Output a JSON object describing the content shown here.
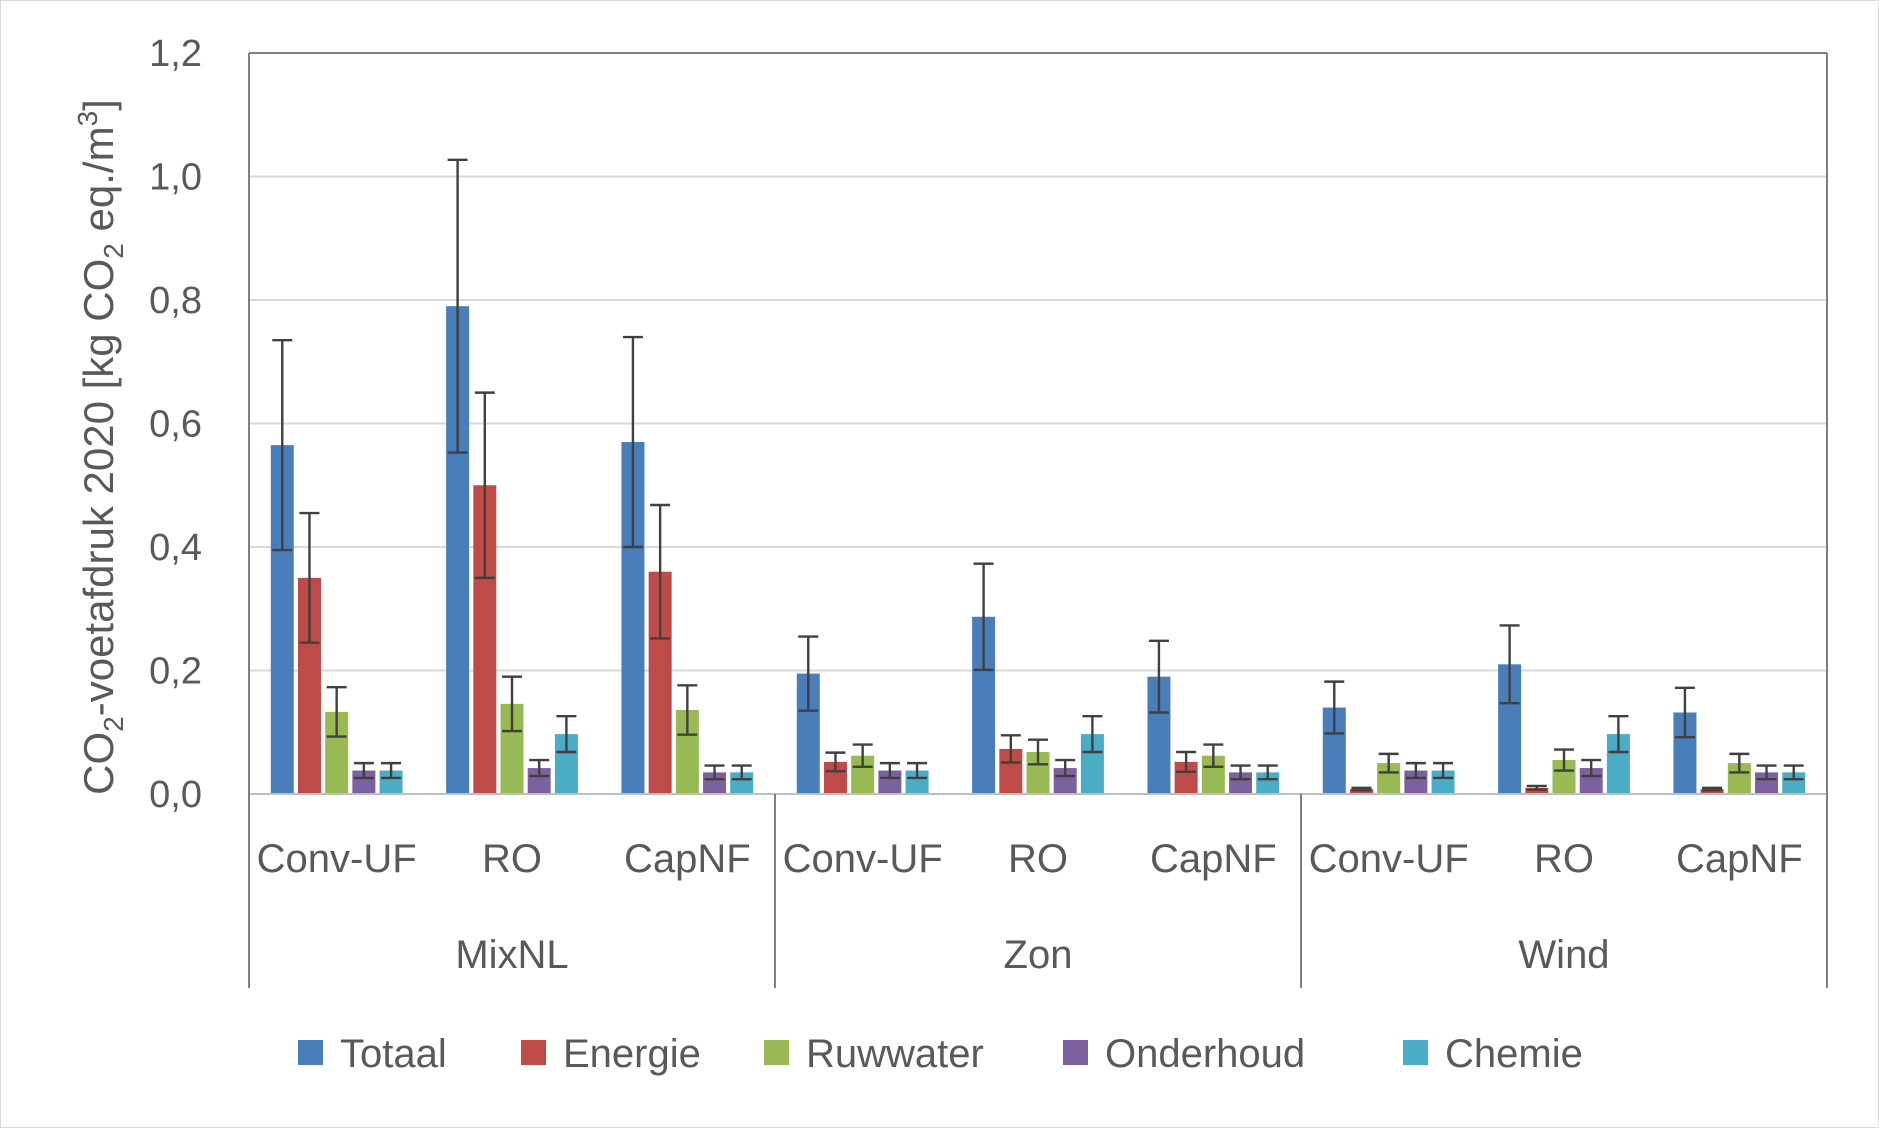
{
  "chart_data": {
    "type": "bar",
    "ylabel": {
      "prefix": "CO",
      "sub1": "2",
      "mid": "-voetafdruk 2020 [kg CO",
      "sub2": "2",
      "mid2": " eq./m",
      "sup": "3",
      "suffix": "]"
    },
    "ylim": [
      0,
      1.2
    ],
    "yticks": [
      "0,0",
      "0,2",
      "0,4",
      "0,6",
      "0,8",
      "1,0",
      "1,2"
    ],
    "ytick_values": [
      0,
      0.2,
      0.4,
      0.6,
      0.8,
      1.0,
      1.2
    ],
    "grid": true,
    "legend_position": "bottom",
    "groups": [
      "MixNL",
      "Zon",
      "Wind"
    ],
    "subcategories": [
      "Conv-UF",
      "RO",
      "CapNF"
    ],
    "series": [
      {
        "name": "Totaal",
        "color": "#4a7ebb",
        "values": [
          0.565,
          0.79,
          0.57,
          0.195,
          0.287,
          0.19,
          0.14,
          0.21,
          0.132
        ],
        "errors": [
          0.17,
          0.237,
          0.17,
          0.06,
          0.086,
          0.058,
          0.042,
          0.063,
          0.04
        ]
      },
      {
        "name": "Energie",
        "color": "#be4b48",
        "values": [
          0.35,
          0.5,
          0.36,
          0.052,
          0.073,
          0.052,
          0.008,
          0.01,
          0.008
        ],
        "errors": [
          0.105,
          0.15,
          0.108,
          0.015,
          0.022,
          0.016,
          0.002,
          0.003,
          0.002
        ]
      },
      {
        "name": "Ruwwater",
        "color": "#98b954",
        "values": [
          0.133,
          0.146,
          0.136,
          0.062,
          0.068,
          0.062,
          0.05,
          0.055,
          0.05
        ],
        "errors": [
          0.04,
          0.044,
          0.04,
          0.018,
          0.02,
          0.018,
          0.015,
          0.017,
          0.015
        ]
      },
      {
        "name": "Onderhoud",
        "color": "#7d60a0",
        "values": [
          0.038,
          0.042,
          0.035,
          0.038,
          0.042,
          0.035,
          0.038,
          0.042,
          0.035
        ],
        "errors": [
          0.012,
          0.013,
          0.011,
          0.012,
          0.013,
          0.011,
          0.012,
          0.013,
          0.011
        ]
      },
      {
        "name": "Chemie",
        "color": "#4bacc6",
        "values": [
          0.038,
          0.097,
          0.035,
          0.038,
          0.097,
          0.035,
          0.038,
          0.097,
          0.035
        ],
        "errors": [
          0.012,
          0.029,
          0.011,
          0.012,
          0.029,
          0.011,
          0.012,
          0.029,
          0.011
        ]
      }
    ]
  }
}
